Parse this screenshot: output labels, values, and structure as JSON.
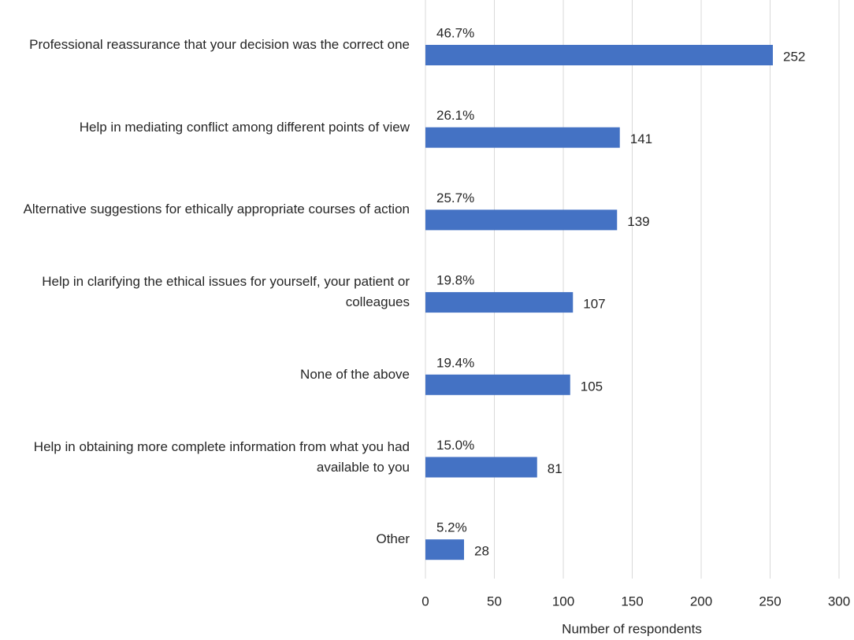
{
  "chart_data": {
    "type": "bar",
    "orientation": "horizontal",
    "x_label": "Number of respondents",
    "categories": [
      "Professional reassurance that your decision was the correct one",
      "Help in mediating conflict among different points of view",
      "Alternative suggestions for ethically appropriate courses of action",
      "Help in clarifying the ethical issues for yourself, your patient or colleagues",
      "None of the above",
      "Help in obtaining more complete information from what you had available to you",
      "Other"
    ],
    "values": [
      252,
      141,
      139,
      107,
      105,
      81,
      28
    ],
    "percent_labels": [
      "46.7%",
      "26.1%",
      "25.7%",
      "19.8%",
      "19.4%",
      "15.0%",
      "5.2%"
    ],
    "color": "#4472c4",
    "xlim": [
      0,
      300
    ],
    "xticks": [
      0,
      50,
      100,
      150,
      200,
      250,
      300
    ],
    "grid": true
  }
}
